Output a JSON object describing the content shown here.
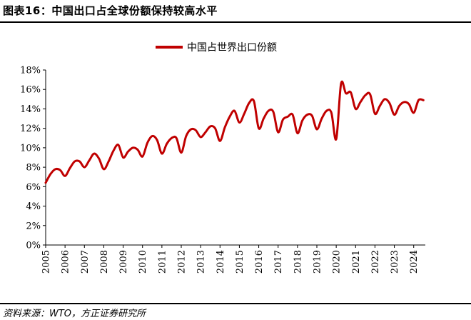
{
  "figure_title": "图表16：中国出口占全球份额保持较高水平",
  "source_note": "资料来源：WTO，方正证券研究所",
  "chart_data": {
    "type": "line",
    "series": [
      {
        "name": "中国占世界出口份额",
        "color": "#c00000",
        "x": [
          2005.0,
          2005.25,
          2005.5,
          2005.75,
          2006.0,
          2006.25,
          2006.5,
          2006.75,
          2007.0,
          2007.25,
          2007.5,
          2007.75,
          2008.0,
          2008.25,
          2008.5,
          2008.75,
          2009.0,
          2009.25,
          2009.5,
          2009.75,
          2010.0,
          2010.25,
          2010.5,
          2010.75,
          2011.0,
          2011.25,
          2011.5,
          2011.75,
          2012.0,
          2012.25,
          2012.5,
          2012.75,
          2013.0,
          2013.25,
          2013.5,
          2013.75,
          2014.0,
          2014.25,
          2014.5,
          2014.75,
          2015.0,
          2015.25,
          2015.5,
          2015.75,
          2016.0,
          2016.25,
          2016.5,
          2016.75,
          2017.0,
          2017.25,
          2017.5,
          2017.75,
          2018.0,
          2018.25,
          2018.5,
          2018.75,
          2019.0,
          2019.25,
          2019.5,
          2019.75,
          2020.0,
          2020.25,
          2020.5,
          2020.75,
          2021.0,
          2021.25,
          2021.5,
          2021.75,
          2022.0,
          2022.25,
          2022.5,
          2022.75,
          2023.0,
          2023.25,
          2023.5,
          2023.75,
          2024.0,
          2024.25,
          2024.5
        ],
        "values": [
          6.4,
          7.3,
          7.8,
          7.7,
          7.1,
          7.9,
          8.6,
          8.6,
          8.0,
          8.7,
          9.4,
          8.9,
          7.8,
          8.6,
          9.7,
          10.3,
          9.0,
          9.6,
          10.0,
          9.8,
          9.1,
          10.5,
          11.2,
          10.8,
          9.4,
          10.4,
          11.0,
          11.0,
          9.5,
          11.2,
          11.9,
          11.8,
          11.1,
          11.6,
          12.2,
          12.0,
          10.7,
          12.1,
          13.2,
          13.8,
          12.6,
          13.5,
          14.6,
          14.8,
          12.0,
          13.0,
          13.8,
          13.7,
          11.6,
          12.9,
          13.2,
          13.4,
          11.5,
          12.8,
          13.4,
          13.3,
          11.9,
          13.0,
          13.8,
          13.6,
          10.9,
          16.6,
          15.6,
          15.7,
          14.0,
          14.7,
          15.4,
          15.5,
          13.5,
          14.3,
          15.0,
          14.6,
          13.4,
          14.3,
          14.7,
          14.5,
          13.6,
          14.9,
          14.9
        ]
      }
    ],
    "x_tick_labels": [
      "2005",
      "2006",
      "2007",
      "2008",
      "2009",
      "2010",
      "2011",
      "2012",
      "2013",
      "2014",
      "2015",
      "2016",
      "2017",
      "2018",
      "2019",
      "2020",
      "2021",
      "2022",
      "2023",
      "2024"
    ],
    "y_tick_labels": [
      "0%",
      "2%",
      "4%",
      "6%",
      "8%",
      "10%",
      "12%",
      "14%",
      "16%",
      "18%"
    ],
    "x_ticks": [
      2005,
      2006,
      2007,
      2008,
      2009,
      2010,
      2011,
      2012,
      2013,
      2014,
      2015,
      2016,
      2017,
      2018,
      2019,
      2020,
      2021,
      2022,
      2023,
      2024
    ],
    "y_ticks": [
      0,
      2,
      4,
      6,
      8,
      10,
      12,
      14,
      16,
      18
    ],
    "xlim": [
      2005,
      2024.6
    ],
    "ylim": [
      0,
      18
    ],
    "grid": false,
    "legend_position": "top-center"
  }
}
